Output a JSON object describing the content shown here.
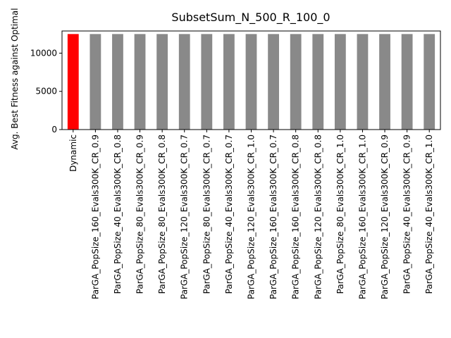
{
  "chart_data": {
    "type": "bar",
    "title": "SubsetSum_N_500_R_100_0",
    "xlabel": "",
    "ylabel": "Avg. Best Fitness against Optimal",
    "ylim": [
      0,
      12900
    ],
    "yticks": [
      0,
      5000,
      10000
    ],
    "grid": false,
    "legend": "none",
    "categories": [
      "Dynamic",
      "ParGA_PopSize_160_Evals300K_CR_0.9",
      "ParGA_PopSize_40_Evals300K_CR_0.8",
      "ParGA_PopSize_80_Evals300K_CR_0.9",
      "ParGA_PopSize_80_Evals300K_CR_0.8",
      "ParGA_PopSize_120_Evals300K_CR_0.7",
      "ParGA_PopSize_80_Evals300K_CR_0.7",
      "ParGA_PopSize_40_Evals300K_CR_0.7",
      "ParGA_PopSize_120_Evals300K_CR_1.0",
      "ParGA_PopSize_160_Evals300K_CR_0.7",
      "ParGA_PopSize_160_Evals300K_CR_0.8",
      "ParGA_PopSize_120_Evals300K_CR_0.8",
      "ParGA_PopSize_80_Evals300K_CR_1.0",
      "ParGA_PopSize_160_Evals300K_CR_1.0",
      "ParGA_PopSize_120_Evals300K_CR_0.9",
      "ParGA_PopSize_40_Evals300K_CR_0.9",
      "ParGA_PopSize_40_Evals300K_CR_1.0"
    ],
    "values": [
      12500,
      12500,
      12500,
      12500,
      12500,
      12500,
      12500,
      12500,
      12500,
      12500,
      12500,
      12500,
      12500,
      12500,
      12500,
      12500,
      12500
    ],
    "colors": {
      "highlight": "#ff0000",
      "default": "#898989"
    },
    "highlight_category": "Dynamic"
  }
}
